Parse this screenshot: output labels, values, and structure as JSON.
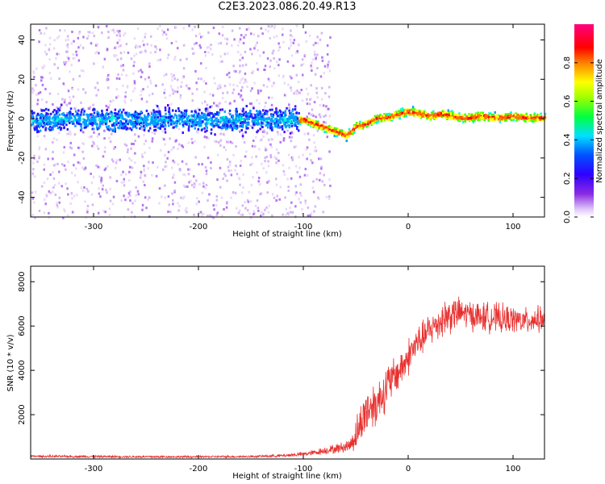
{
  "title": "C2E3.2023.086.20.49.R13",
  "colors": {
    "snr_line": "#e8312f",
    "spectrogram_low": "#e6d6f8",
    "spectrogram_mid": "#6a00ff",
    "colormap": [
      "#ff00ff",
      "#ff0000",
      "#ffff00",
      "#00ff00",
      "#00ffff",
      "#0000ff",
      "#ff00ff"
    ]
  },
  "chart_data": [
    {
      "type": "heatmap",
      "title": "",
      "xlabel": "Height of straight line (km)",
      "ylabel": "Frequency (Hz)",
      "xlim": [
        -360,
        130
      ],
      "ylim": [
        -50,
        48
      ],
      "xticks": [
        -300,
        -200,
        -100,
        0,
        100
      ],
      "yticks": [
        -40,
        -20,
        0,
        20,
        40
      ],
      "colorbar": {
        "label": "Normalized spectral amplitude",
        "range": [
          0,
          1
        ],
        "ticks": [
          "0.0",
          "0.2",
          "0.4",
          "0.6",
          "0.8"
        ],
        "tick_values": [
          0.0,
          0.2,
          0.4,
          0.6,
          0.8
        ],
        "colormap": "rainbow (purple-blue-cyan-green-yellow-red-magenta)"
      },
      "ridge": {
        "x": [
          -360,
          -300,
          -200,
          -110,
          -100,
          -90,
          -80,
          -70,
          -60,
          -55,
          -50,
          -45,
          -40,
          -30,
          -20,
          -10,
          0,
          10,
          20,
          30,
          40,
          50,
          60,
          70,
          80,
          90,
          100,
          110,
          120,
          130
        ],
        "frequency_hz": [
          0,
          0,
          0,
          0,
          0,
          -2,
          -4,
          -6,
          -8,
          -6,
          -3,
          -3,
          -2,
          1,
          1,
          3,
          4,
          3,
          2,
          3,
          2,
          1,
          1,
          2,
          1,
          1,
          2,
          1,
          1,
          1
        ]
      }
    },
    {
      "type": "line",
      "title": "",
      "xlabel": "Height of straight line (km)",
      "ylabel": "SNR (10 * v/v)",
      "xlim": [
        -360,
        130
      ],
      "ylim": [
        0,
        8700
      ],
      "xticks": [
        -300,
        -200,
        -100,
        0,
        100
      ],
      "yticks": [
        2000,
        4000,
        6000,
        8000
      ],
      "series": [
        {
          "x": [
            -360,
            -300,
            -250,
            -200,
            -150,
            -120,
            -100,
            -90,
            -80,
            -70,
            -60,
            -55,
            -50,
            -45,
            -40,
            -35,
            -30,
            -25,
            -20,
            -15,
            -10,
            -5,
            0,
            5,
            10,
            15,
            20,
            25,
            30,
            35,
            40,
            50,
            60,
            70,
            80,
            90,
            100,
            110,
            120,
            130
          ],
          "values": [
            120,
            110,
            100,
            100,
            110,
            150,
            220,
            280,
            380,
            450,
            550,
            650,
            1100,
            1600,
            2200,
            2400,
            2500,
            2900,
            3300,
            3600,
            3900,
            4200,
            4600,
            5000,
            5300,
            5500,
            5800,
            6000,
            6200,
            6400,
            6500,
            6600,
            6500,
            6400,
            6400,
            6300,
            6300,
            6200,
            6300,
            6300
          ],
          "spread": [
            60,
            60,
            60,
            60,
            60,
            80,
            120,
            150,
            200,
            250,
            300,
            400,
            900,
            1100,
            1300,
            1300,
            1200,
            1200,
            1200,
            1100,
            1000,
            1000,
            1000,
            1000,
            900,
            900,
            900,
            900,
            900,
            1100,
            1000,
            800,
            800,
            800,
            800,
            800,
            700,
            700,
            700,
            700
          ]
        }
      ]
    }
  ]
}
